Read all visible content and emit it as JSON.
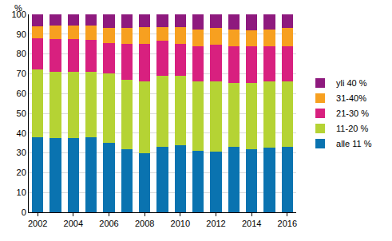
{
  "chart_data": {
    "type": "bar",
    "stacked": true,
    "ylabel": "%",
    "categories": [
      "2002",
      null,
      "2004",
      null,
      "2006",
      null,
      "2008",
      null,
      "2010",
      null,
      "2012",
      null,
      "2014",
      null,
      "2016"
    ],
    "series": [
      {
        "name": "alle 11 %",
        "color": "#0a73b0",
        "values": [
          38,
          37.5,
          37.5,
          38,
          35,
          32,
          30,
          33,
          34,
          31,
          30.5,
          33,
          32,
          32.5,
          33
        ]
      },
      {
        "name": "11-20 %",
        "color": "#b5d334",
        "values": [
          34,
          33.5,
          33.5,
          33,
          35,
          35,
          36,
          36,
          35,
          35,
          35.5,
          32.5,
          33.5,
          33.5,
          33
        ]
      },
      {
        "name": "21-30 %",
        "color": "#d8207f",
        "values": [
          16,
          16.5,
          16.5,
          16,
          15.5,
          18,
          19,
          17.5,
          16,
          18,
          18.5,
          18.5,
          18.5,
          18,
          18
        ]
      },
      {
        "name": "31-40%",
        "color": "#f7a020",
        "values": [
          6,
          7,
          7,
          7.5,
          7.5,
          8,
          8.5,
          7,
          8.5,
          8.5,
          8.5,
          8.5,
          8,
          8.5,
          9
        ]
      },
      {
        "name": "yli 40 %",
        "color": "#8e1a7e",
        "values": [
          6,
          5.5,
          5.5,
          5.5,
          7,
          7,
          6.5,
          6.5,
          6.5,
          7.5,
          7,
          7.5,
          8,
          7.5,
          7
        ]
      }
    ],
    "ylim": [
      0,
      100
    ],
    "yticks": [
      0,
      10,
      20,
      30,
      40,
      50,
      60,
      70,
      80,
      90,
      100
    ],
    "grid": true,
    "legend": "right"
  }
}
